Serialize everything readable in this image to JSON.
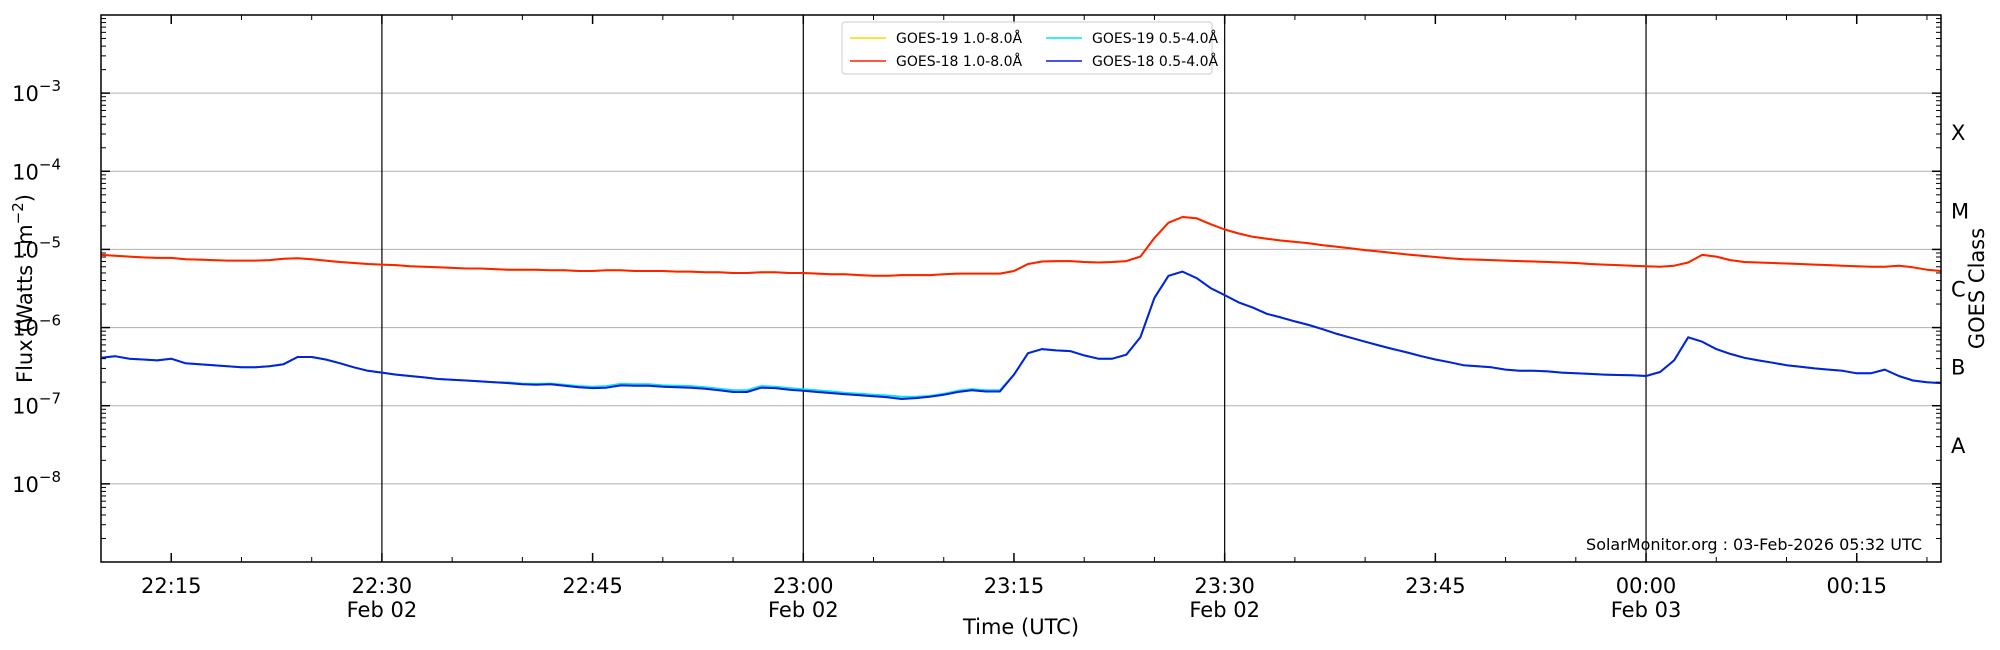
{
  "chart_data": {
    "type": "line",
    "title": "",
    "xlabel": "Time (UTC)",
    "ylabel_base": "Flux (Watts · m",
    "ylabel_sup": "−2",
    "ylabel_close": ")",
    "y2label": "GOES Class",
    "yscale": "log",
    "ylim": [
      1e-09,
      0.01
    ],
    "xlim": [
      "2026-02-02T22:10",
      "2026-02-03T00:20"
    ],
    "grid": "horizontal at decades",
    "legend_position": "top-center",
    "watermark": "SolarMonitor.org : 03-Feb-2026 05:32 UTC",
    "y_ticks": [
      {
        "value": 1e-08,
        "base": "10",
        "exp": "−8"
      },
      {
        "value": 1e-07,
        "base": "10",
        "exp": "−7"
      },
      {
        "value": 1e-06,
        "base": "10",
        "exp": "−6"
      },
      {
        "value": 1e-05,
        "base": "10",
        "exp": "−5"
      },
      {
        "value": 0.0001,
        "base": "10",
        "exp": "−4"
      },
      {
        "value": 0.001,
        "base": "10",
        "exp": "−3"
      }
    ],
    "x_ticks": [
      {
        "minute": 5,
        "label": "22:15",
        "date": ""
      },
      {
        "minute": 20,
        "label": "22:30",
        "date": "Feb 02"
      },
      {
        "minute": 35,
        "label": "22:45",
        "date": ""
      },
      {
        "minute": 50,
        "label": "23:00",
        "date": "Feb 02"
      },
      {
        "minute": 65,
        "label": "23:15",
        "date": ""
      },
      {
        "minute": 80,
        "label": "23:30",
        "date": "Feb 02"
      },
      {
        "minute": 95,
        "label": "23:45",
        "date": ""
      },
      {
        "minute": 110,
        "label": "00:00",
        "date": "Feb 03"
      },
      {
        "minute": 125,
        "label": "00:15",
        "date": ""
      }
    ],
    "vertical_lines_minutes": [
      20,
      50,
      80,
      110
    ],
    "goes_classes": [
      {
        "label": "A",
        "value": 3.16e-08
      },
      {
        "label": "B",
        "value": 3.16e-07
      },
      {
        "label": "C",
        "value": 3.16e-06
      },
      {
        "label": "M",
        "value": 3.16e-05
      },
      {
        "label": "X",
        "value": 0.000316
      }
    ],
    "x_minutes": [
      0,
      1,
      2,
      3,
      4,
      5,
      6,
      7,
      8,
      9,
      10,
      11,
      12,
      13,
      14,
      15,
      16,
      17,
      18,
      19,
      20,
      21,
      22,
      23,
      24,
      25,
      26,
      27,
      28,
      29,
      30,
      31,
      32,
      33,
      34,
      35,
      36,
      37,
      38,
      39,
      40,
      41,
      42,
      43,
      44,
      45,
      46,
      47,
      48,
      49,
      50,
      51,
      52,
      53,
      54,
      55,
      56,
      57,
      58,
      59,
      60,
      61,
      62,
      63,
      64,
      65,
      66,
      67,
      68,
      69,
      70,
      71,
      72,
      73,
      74,
      75,
      76,
      77,
      78,
      79,
      80,
      81,
      82,
      83,
      84,
      85,
      86,
      87,
      88,
      89,
      90,
      91,
      92,
      93,
      94,
      95,
      96,
      97,
      98,
      99,
      100,
      101,
      102,
      103,
      104,
      105,
      106,
      107,
      108,
      109,
      110,
      111,
      112,
      113,
      114,
      115,
      116,
      117,
      118,
      119,
      120,
      121,
      122,
      123,
      124,
      125,
      126,
      127,
      128,
      129,
      130,
      131
    ],
    "series": [
      {
        "name": "GOES-19 1.0-8.0Å",
        "color": "#ffd700",
        "values": [
          8.5e-06,
          8.3e-06,
          8.1e-06,
          7.9e-06,
          7.8e-06,
          7.8e-06,
          7.5e-06,
          7.4e-06,
          7.3e-06,
          7.2e-06,
          7.2e-06,
          7.2e-06,
          7.3e-06,
          7.6e-06,
          7.7e-06,
          7.5e-06,
          7.2e-06,
          6.9e-06,
          6.7e-06,
          6.5e-06,
          6.4e-06,
          6.3e-06,
          6.1e-06,
          6e-06,
          5.9e-06,
          5.8e-06,
          5.7e-06,
          5.7e-06,
          5.6e-06,
          5.5e-06,
          5.5e-06,
          5.5e-06,
          5.4e-06,
          5.4e-06,
          5.3e-06,
          5.3e-06,
          5.4e-06,
          5.4e-06,
          5.3e-06,
          5.3e-06,
          5.3e-06,
          5.2e-06,
          5.2e-06,
          5.1e-06,
          5.1e-06,
          5e-06,
          5e-06,
          5.1e-06,
          5.1e-06,
          5e-06,
          5e-06,
          4.9e-06,
          4.8e-06,
          4.8e-06,
          4.7e-06,
          4.6e-06,
          4.6e-06,
          4.7e-06,
          4.7e-06,
          4.7e-06,
          4.8e-06,
          4.9e-06,
          4.9e-06,
          4.9e-06,
          4.9e-06,
          5.3e-06,
          6.5e-06,
          7e-06,
          7.1e-06,
          7.1e-06,
          6.9e-06,
          6.8e-06,
          6.9e-06,
          7.1e-06,
          8.1e-06,
          1.4e-05,
          2.2e-05,
          2.6e-05,
          2.5e-05,
          2.1e-05,
          1.8e-05,
          1.6e-05,
          1.45e-05,
          1.37e-05,
          1.3e-05,
          1.25e-05,
          1.2e-05,
          1.13e-05,
          1.08e-05,
          1.03e-05,
          9.8e-06,
          9.4e-06,
          9e-06,
          8.6e-06,
          8.3e-06,
          8e-06,
          7.7e-06,
          7.5e-06,
          7.4e-06,
          7.3e-06,
          7.2e-06,
          7.1e-06,
          7e-06,
          6.9e-06,
          6.8e-06,
          6.7e-06,
          6.5e-06,
          6.4e-06,
          6.3e-06,
          6.2e-06,
          6.1e-06,
          6e-06,
          6.2e-06,
          6.8e-06,
          8.5e-06,
          8.1e-06,
          7.3e-06,
          6.9e-06,
          6.8e-06,
          6.7e-06,
          6.6e-06,
          6.5e-06,
          6.4e-06,
          6.3e-06,
          6.2e-06,
          6.1e-06,
          6e-06,
          6e-06,
          6.2e-06,
          5.9e-06,
          5.5e-06,
          5.3e-06
        ]
      },
      {
        "name": "GOES-19 0.5-4.0Å",
        "color": "#00e5ee",
        "values": [
          4.1e-07,
          4.3e-07,
          4e-07,
          3.9e-07,
          3.8e-07,
          4e-07,
          3.5e-07,
          3.4e-07,
          3.3e-07,
          3.2e-07,
          3.1e-07,
          3.1e-07,
          3.2e-07,
          3.4e-07,
          4.2e-07,
          4.2e-07,
          3.9e-07,
          3.5e-07,
          3.1e-07,
          2.8e-07,
          2.65e-07,
          2.5e-07,
          2.4e-07,
          2.3e-07,
          2.2e-07,
          2.15e-07,
          2.1e-07,
          2.05e-07,
          2e-07,
          1.98e-07,
          1.92e-07,
          1.9e-07,
          1.92e-07,
          1.85e-07,
          1.78e-07,
          1.75e-07,
          1.78e-07,
          1.9e-07,
          1.88e-07,
          1.88e-07,
          1.82e-07,
          1.8e-07,
          1.78e-07,
          1.72e-07,
          1.65e-07,
          1.58e-07,
          1.58e-07,
          1.78e-07,
          1.75e-07,
          1.68e-07,
          1.62e-07,
          1.57e-07,
          1.52e-07,
          1.46e-07,
          1.42e-07,
          1.38e-07,
          1.35e-07,
          1.3e-07,
          1.3e-07,
          1.33e-07,
          1.42e-07,
          1.55e-07,
          1.63e-07,
          1.58e-07,
          1.58e-07,
          2.5e-07,
          4.7e-07,
          5.3e-07,
          5.1e-07,
          5e-07,
          4.4e-07,
          4e-07,
          4e-07,
          4.5e-07,
          7.5e-07,
          2.4e-06,
          4.6e-06,
          5.2e-06,
          4.3e-06,
          3.2e-06,
          2.6e-06,
          2.1e-06,
          1.8e-06,
          1.5e-06,
          1.35e-06,
          1.2e-06,
          1.08e-06,
          9.5e-07,
          8.3e-07,
          7.4e-07,
          6.6e-07,
          5.9e-07,
          5.3e-07,
          4.8e-07,
          4.3e-07,
          3.9e-07,
          3.6e-07,
          3.3e-07,
          3.2e-07,
          3.1e-07,
          2.9e-07,
          2.8e-07,
          2.8e-07,
          2.75e-07,
          2.65e-07,
          2.6e-07,
          2.55e-07,
          2.5e-07,
          2.47e-07,
          2.45e-07,
          2.4e-07,
          2.7e-07,
          3.8e-07,
          7.5e-07,
          6.6e-07,
          5.3e-07,
          4.6e-07,
          4.1e-07,
          3.8e-07,
          3.55e-07,
          3.3e-07,
          3.15e-07,
          3e-07,
          2.9e-07,
          2.8e-07,
          2.6e-07,
          2.6e-07,
          2.9e-07,
          2.4e-07,
          2.1e-07,
          2e-07,
          1.95e-07
        ]
      },
      {
        "name": "GOES-18 1.0-8.0Å",
        "color": "#ff2000",
        "values": [
          8.5e-06,
          8.3e-06,
          8.1e-06,
          7.9e-06,
          7.8e-06,
          7.8e-06,
          7.5e-06,
          7.4e-06,
          7.3e-06,
          7.2e-06,
          7.2e-06,
          7.2e-06,
          7.3e-06,
          7.6e-06,
          7.7e-06,
          7.5e-06,
          7.2e-06,
          6.9e-06,
          6.7e-06,
          6.5e-06,
          6.4e-06,
          6.3e-06,
          6.1e-06,
          6e-06,
          5.9e-06,
          5.8e-06,
          5.7e-06,
          5.7e-06,
          5.6e-06,
          5.5e-06,
          5.5e-06,
          5.5e-06,
          5.4e-06,
          5.4e-06,
          5.3e-06,
          5.3e-06,
          5.4e-06,
          5.4e-06,
          5.3e-06,
          5.3e-06,
          5.3e-06,
          5.2e-06,
          5.2e-06,
          5.1e-06,
          5.1e-06,
          5e-06,
          5e-06,
          5.1e-06,
          5.1e-06,
          5e-06,
          5e-06,
          4.9e-06,
          4.8e-06,
          4.8e-06,
          4.7e-06,
          4.6e-06,
          4.6e-06,
          4.7e-06,
          4.7e-06,
          4.7e-06,
          4.8e-06,
          4.9e-06,
          4.9e-06,
          4.9e-06,
          4.9e-06,
          5.3e-06,
          6.5e-06,
          7e-06,
          7.1e-06,
          7.1e-06,
          6.9e-06,
          6.8e-06,
          6.9e-06,
          7.1e-06,
          8.1e-06,
          1.4e-05,
          2.2e-05,
          2.6e-05,
          2.5e-05,
          2.1e-05,
          1.8e-05,
          1.6e-05,
          1.45e-05,
          1.37e-05,
          1.3e-05,
          1.25e-05,
          1.2e-05,
          1.13e-05,
          1.08e-05,
          1.03e-05,
          9.8e-06,
          9.4e-06,
          9e-06,
          8.6e-06,
          8.3e-06,
          8e-06,
          7.7e-06,
          7.5e-06,
          7.4e-06,
          7.3e-06,
          7.2e-06,
          7.1e-06,
          7e-06,
          6.9e-06,
          6.8e-06,
          6.7e-06,
          6.5e-06,
          6.4e-06,
          6.3e-06,
          6.2e-06,
          6.1e-06,
          6e-06,
          6.2e-06,
          6.8e-06,
          8.5e-06,
          8.1e-06,
          7.3e-06,
          6.9e-06,
          6.8e-06,
          6.7e-06,
          6.6e-06,
          6.5e-06,
          6.4e-06,
          6.3e-06,
          6.2e-06,
          6.1e-06,
          6e-06,
          6e-06,
          6.2e-06,
          5.9e-06,
          5.5e-06,
          5.3e-06
        ]
      },
      {
        "name": "GOES-18 0.5-4.0Å",
        "color": "#0a1fd8",
        "values": [
          4.1e-07,
          4.3e-07,
          4e-07,
          3.9e-07,
          3.8e-07,
          4e-07,
          3.5e-07,
          3.4e-07,
          3.3e-07,
          3.2e-07,
          3.1e-07,
          3.1e-07,
          3.2e-07,
          3.4e-07,
          4.2e-07,
          4.2e-07,
          3.9e-07,
          3.5e-07,
          3.1e-07,
          2.8e-07,
          2.65e-07,
          2.5e-07,
          2.4e-07,
          2.3e-07,
          2.2e-07,
          2.15e-07,
          2.1e-07,
          2.05e-07,
          2e-07,
          1.95e-07,
          1.88e-07,
          1.85e-07,
          1.88e-07,
          1.8e-07,
          1.72e-07,
          1.68e-07,
          1.7e-07,
          1.82e-07,
          1.8e-07,
          1.8e-07,
          1.75e-07,
          1.72e-07,
          1.7e-07,
          1.65e-07,
          1.58e-07,
          1.5e-07,
          1.5e-07,
          1.7e-07,
          1.68e-07,
          1.6e-07,
          1.55e-07,
          1.5e-07,
          1.45e-07,
          1.4e-07,
          1.36e-07,
          1.32e-07,
          1.28e-07,
          1.22e-07,
          1.25e-07,
          1.3e-07,
          1.38e-07,
          1.5e-07,
          1.58e-07,
          1.52e-07,
          1.52e-07,
          2.5e-07,
          4.7e-07,
          5.3e-07,
          5.1e-07,
          5e-07,
          4.4e-07,
          4e-07,
          4e-07,
          4.5e-07,
          7.5e-07,
          2.4e-06,
          4.6e-06,
          5.2e-06,
          4.3e-06,
          3.2e-06,
          2.6e-06,
          2.1e-06,
          1.8e-06,
          1.5e-06,
          1.35e-06,
          1.2e-06,
          1.08e-06,
          9.5e-07,
          8.3e-07,
          7.4e-07,
          6.6e-07,
          5.9e-07,
          5.3e-07,
          4.8e-07,
          4.3e-07,
          3.9e-07,
          3.6e-07,
          3.3e-07,
          3.2e-07,
          3.1e-07,
          2.9e-07,
          2.8e-07,
          2.8e-07,
          2.75e-07,
          2.65e-07,
          2.6e-07,
          2.55e-07,
          2.5e-07,
          2.47e-07,
          2.45e-07,
          2.4e-07,
          2.7e-07,
          3.8e-07,
          7.5e-07,
          6.6e-07,
          5.3e-07,
          4.6e-07,
          4.1e-07,
          3.8e-07,
          3.55e-07,
          3.3e-07,
          3.15e-07,
          3e-07,
          2.9e-07,
          2.8e-07,
          2.6e-07,
          2.6e-07,
          2.9e-07,
          2.4e-07,
          2.1e-07,
          2e-07,
          1.95e-07
        ]
      }
    ],
    "legend_order": [
      0,
      1,
      2,
      3
    ]
  }
}
